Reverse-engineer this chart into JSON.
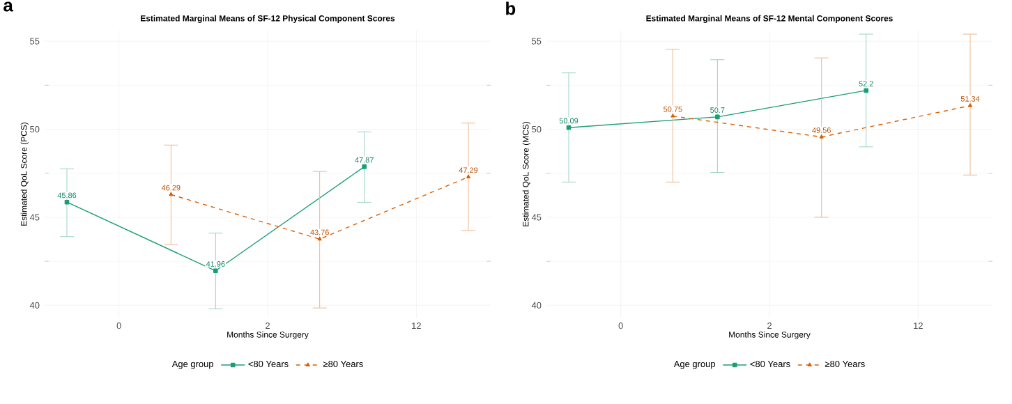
{
  "chart_data": [
    {
      "type": "line",
      "title": "Estimated Marginal Means of SF-12 Physical Component Scores",
      "xlabel": "Months Since Surgery",
      "ylabel": "Estimated QoL Score (PCS)",
      "legend_title": "Age group",
      "annotations": [
        "a"
      ],
      "categories": [
        "0",
        "2",
        "12"
      ],
      "ylim": [
        39.3,
        55.6
      ],
      "yticks": [
        40,
        45,
        50,
        55
      ],
      "grid": true,
      "legend": "bottom",
      "data_labels": true,
      "series": [
        {
          "name": "<80 Years",
          "color": "#1b9e77",
          "marker": "square",
          "line_style": "solid",
          "values": [
            45.86,
            41.96,
            47.87
          ],
          "errors": [
            [
              43.9,
              47.75
            ],
            [
              39.8,
              44.1
            ],
            [
              45.85,
              49.85
            ]
          ]
        },
        {
          "name": "≥80 Years",
          "color": "#d95f02",
          "marker": "triangle",
          "line_style": "dashed",
          "values": [
            46.29,
            43.76,
            47.29
          ],
          "errors": [
            [
              43.45,
              49.1
            ],
            [
              39.85,
              47.6
            ],
            [
              44.25,
              50.35
            ]
          ]
        }
      ]
    },
    {
      "type": "line",
      "title": "Estimated Marginal Means of SF-12 Mental Component Scores",
      "xlabel": "Months Since Surgery",
      "ylabel": "Estimated QoL Score (MCS)",
      "legend_title": "Age group",
      "annotations": [
        "b"
      ],
      "categories": [
        "0",
        "2",
        "12"
      ],
      "ylim": [
        39.3,
        55.6
      ],
      "yticks": [
        40,
        45,
        50,
        55
      ],
      "grid": true,
      "legend": "bottom",
      "data_labels": true,
      "series": [
        {
          "name": "<80 Years",
          "color": "#1b9e77",
          "marker": "square",
          "line_style": "solid",
          "values": [
            50.09,
            50.7,
            52.2
          ],
          "errors": [
            [
              47.0,
              53.2
            ],
            [
              47.55,
              53.95
            ],
            [
              49.0,
              55.4
            ]
          ]
        },
        {
          "name": "≥80 Years",
          "color": "#d95f02",
          "marker": "triangle",
          "line_style": "dashed",
          "values": [
            50.75,
            49.56,
            51.34
          ],
          "errors": [
            [
              47.0,
              54.55
            ],
            [
              45.0,
              54.05
            ],
            [
              47.4,
              55.4
            ]
          ]
        }
      ]
    }
  ]
}
